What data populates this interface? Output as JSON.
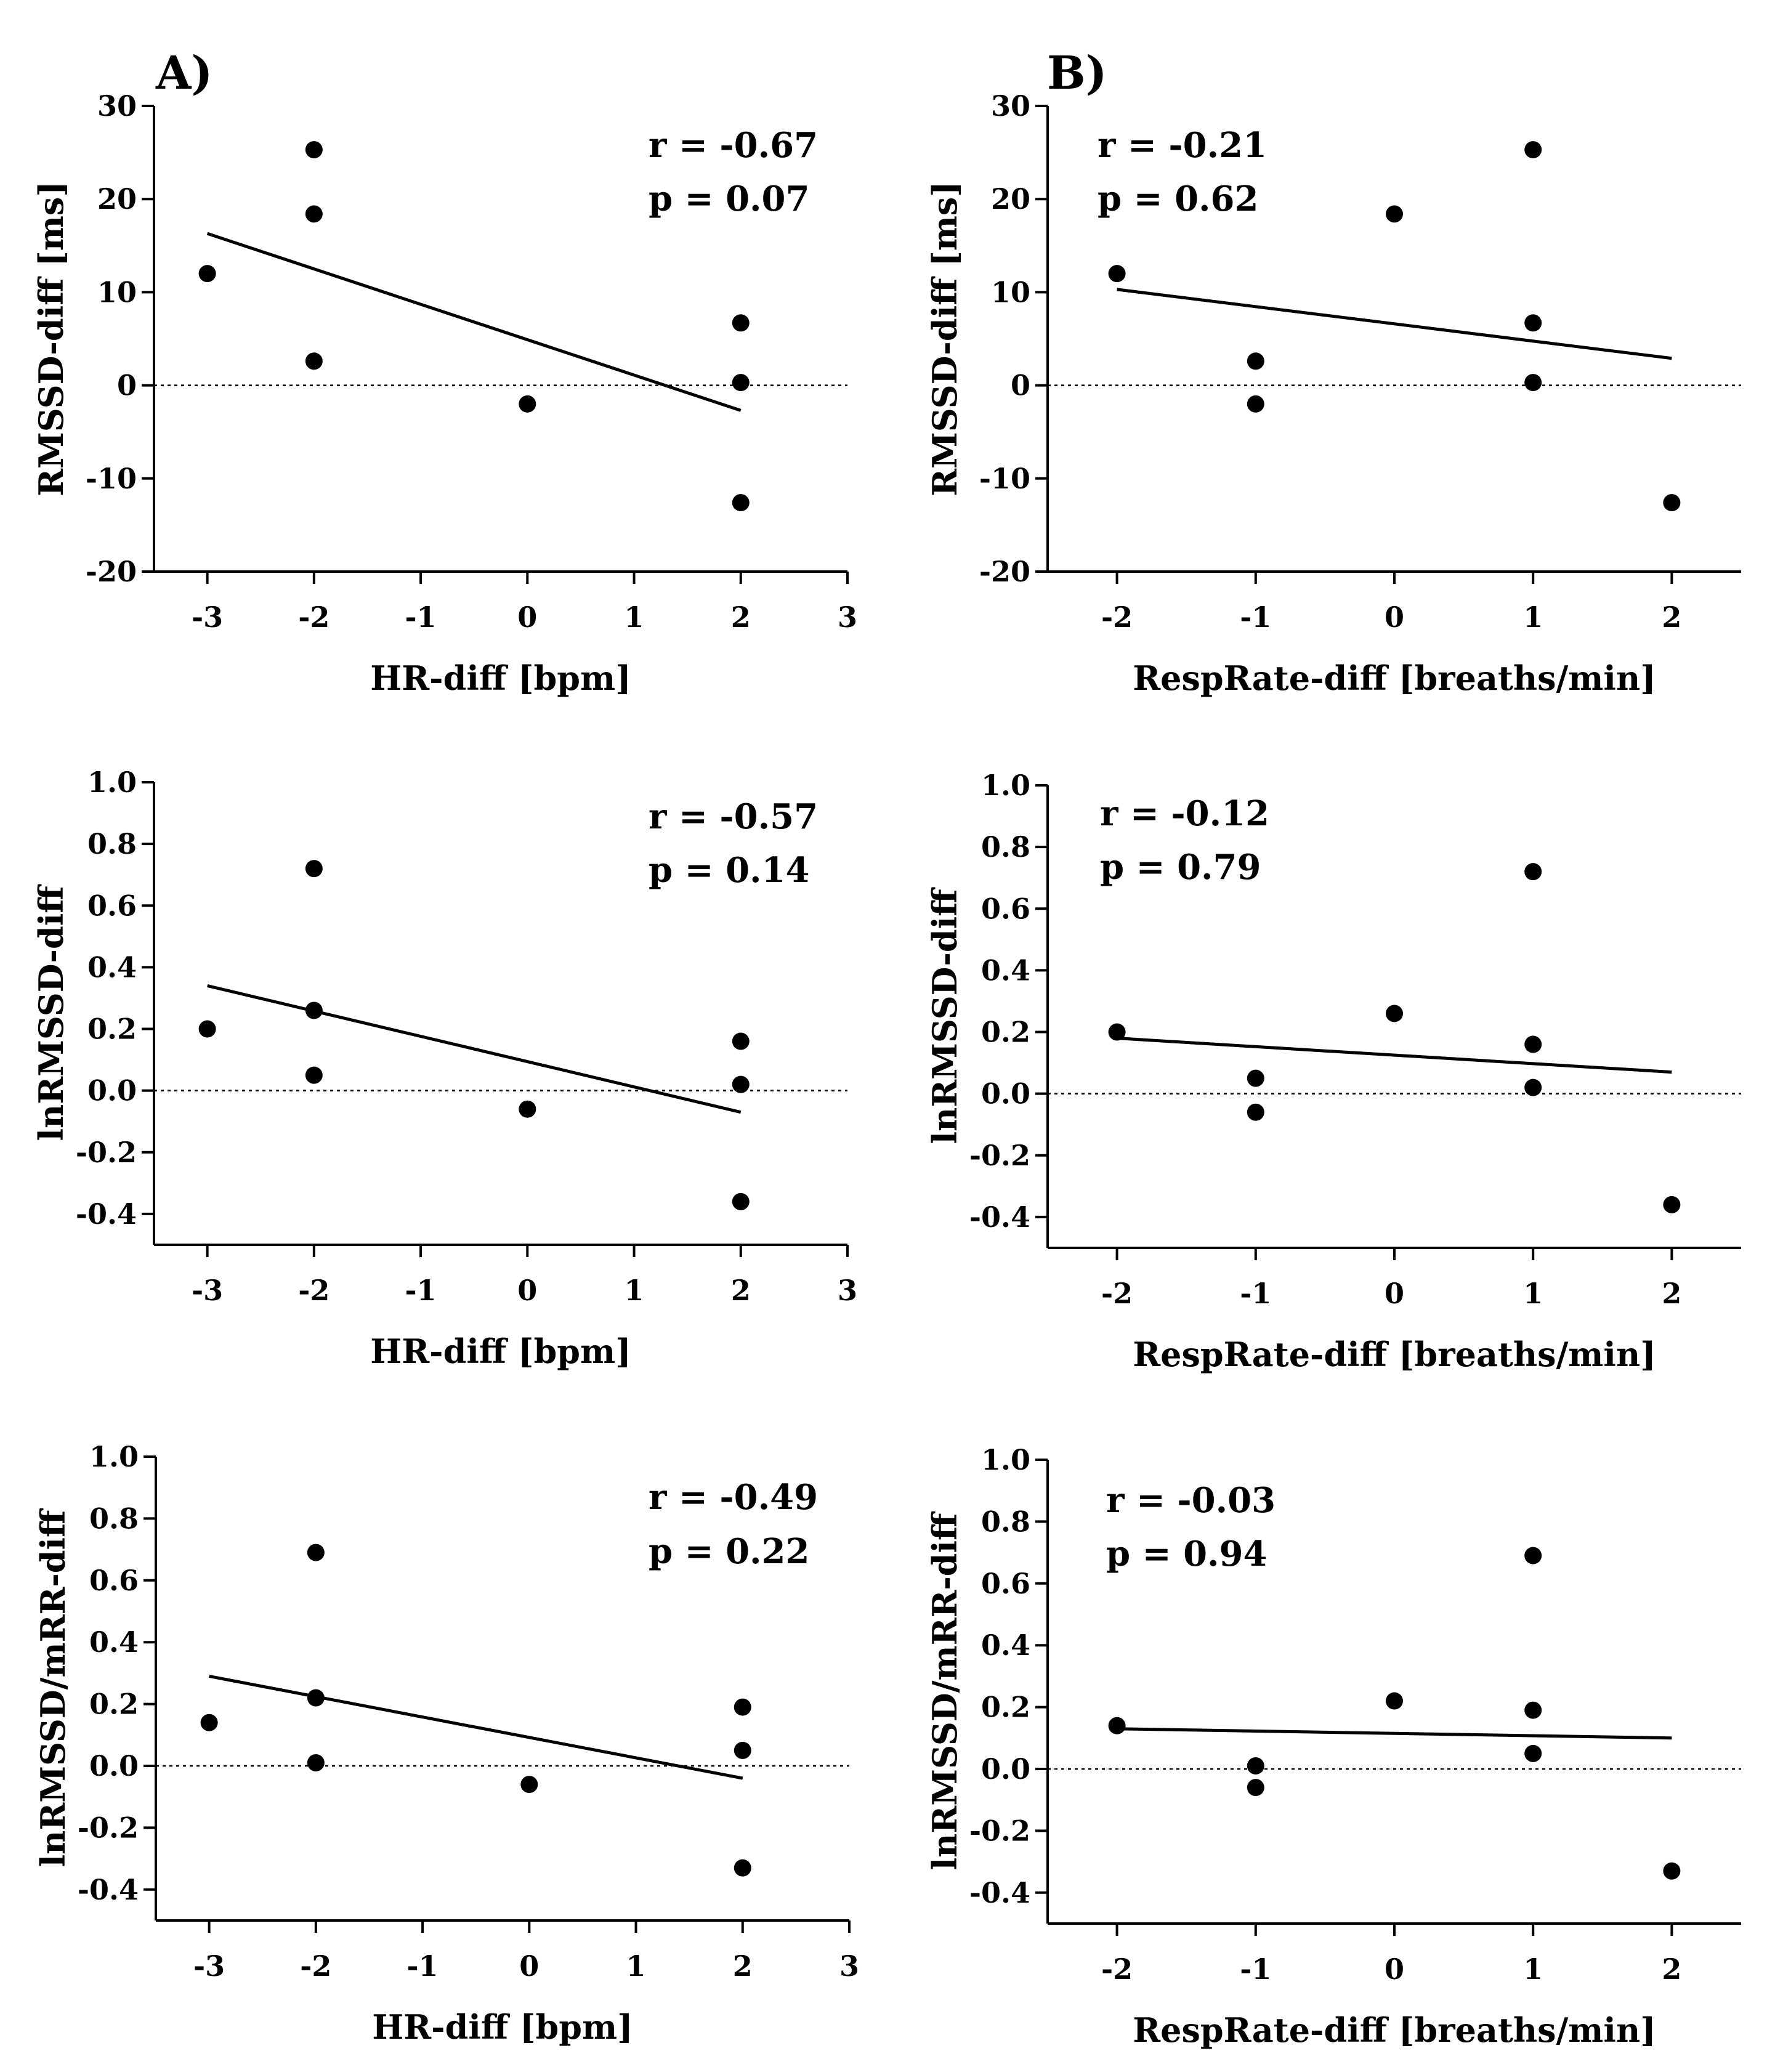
{
  "figure": {
    "panel_letters": [
      "A)",
      "B)"
    ]
  },
  "chart_data": [
    {
      "type": "scatter",
      "panel": "A1",
      "xlabel": "HR-diff [bpm]",
      "ylabel": "RMSSD-diff [ms]",
      "xlim": [
        -3.5,
        3
      ],
      "ylim": [
        -20,
        30
      ],
      "xticks": [
        -3,
        -2,
        -1,
        0,
        1,
        2,
        3
      ],
      "yticks": [
        -20,
        -10,
        0,
        10,
        20,
        30
      ],
      "y_decimals": 0,
      "x": [
        -3,
        -2,
        -2,
        -2,
        0,
        2,
        2,
        2
      ],
      "y": [
        12,
        25.3,
        18.4,
        2.6,
        -2,
        6.7,
        0.3,
        -12.6
      ],
      "fit": {
        "x": [
          -3,
          2
        ],
        "y": [
          16.3,
          -2.7
        ]
      },
      "stats": {
        "r": "r = -0.67",
        "p": "p = 0.07"
      }
    },
    {
      "type": "scatter",
      "panel": "B1",
      "xlabel": "RespRate-diff [breaths/min]",
      "ylabel": "RMSSD-diff [ms]",
      "xlim": [
        -2.5,
        2.5
      ],
      "ylim": [
        -20,
        30
      ],
      "xticks": [
        -2,
        -1,
        0,
        1,
        2
      ],
      "yticks": [
        -20,
        -10,
        0,
        10,
        20,
        30
      ],
      "y_decimals": 0,
      "x": [
        -2,
        -1,
        -1,
        0,
        1,
        1,
        1,
        2
      ],
      "y": [
        12,
        2.6,
        -2,
        18.4,
        25.3,
        6.7,
        0.3,
        -12.6
      ],
      "fit": {
        "x": [
          -2,
          2
        ],
        "y": [
          10.3,
          2.9
        ]
      },
      "stats": {
        "r": "r = -0.21",
        "p": "p = 0.62"
      }
    },
    {
      "type": "scatter",
      "panel": "A2",
      "xlabel": "HR-diff [bpm]",
      "ylabel": "lnRMSSD-diff",
      "xlim": [
        -3.5,
        3
      ],
      "ylim": [
        -0.5,
        1.0
      ],
      "xticks": [
        -3,
        -2,
        -1,
        0,
        1,
        2,
        3
      ],
      "yticks": [
        -0.4,
        -0.2,
        0.0,
        0.2,
        0.4,
        0.6,
        0.8,
        1.0
      ],
      "y_decimals": 1,
      "x": [
        -3,
        -2,
        -2,
        -2,
        0,
        2,
        2,
        2
      ],
      "y": [
        0.2,
        0.72,
        0.26,
        0.05,
        -0.06,
        0.16,
        0.02,
        -0.36
      ],
      "fit": {
        "x": [
          -3,
          2
        ],
        "y": [
          0.34,
          -0.07
        ]
      },
      "stats": {
        "r": "r = -0.57",
        "p": "p = 0.14"
      }
    },
    {
      "type": "scatter",
      "panel": "B2",
      "xlabel": "RespRate-diff [breaths/min]",
      "ylabel": "lnRMSSD-diff",
      "xlim": [
        -2.5,
        2.5
      ],
      "ylim": [
        -0.5,
        1.0
      ],
      "xticks": [
        -2,
        -1,
        0,
        1,
        2
      ],
      "yticks": [
        -0.4,
        -0.2,
        0.0,
        0.2,
        0.4,
        0.6,
        0.8,
        1.0
      ],
      "y_decimals": 1,
      "x": [
        -2,
        -1,
        -1,
        0,
        1,
        1,
        1,
        2
      ],
      "y": [
        0.2,
        0.05,
        -0.06,
        0.26,
        0.72,
        0.16,
        0.02,
        -0.36
      ],
      "fit": {
        "x": [
          -2,
          2
        ],
        "y": [
          0.18,
          0.07
        ]
      },
      "stats": {
        "r": "r = -0.12",
        "p": "p = 0.79"
      }
    },
    {
      "type": "scatter",
      "panel": "A3",
      "xlabel": "HR-diff [bpm]",
      "ylabel": "lnRMSSD/mRR-diff",
      "xlim": [
        -3.5,
        3
      ],
      "ylim": [
        -0.5,
        1.0
      ],
      "xticks": [
        -3,
        -2,
        -1,
        0,
        1,
        2,
        3
      ],
      "yticks": [
        -0.4,
        -0.2,
        0.0,
        0.2,
        0.4,
        0.6,
        0.8,
        1.0
      ],
      "y_decimals": 1,
      "x": [
        -3,
        -2,
        -2,
        -2,
        0,
        2,
        2,
        2
      ],
      "y": [
        0.14,
        0.69,
        0.22,
        0.01,
        -0.06,
        0.19,
        0.05,
        -0.33
      ],
      "fit": {
        "x": [
          -3,
          2
        ],
        "y": [
          0.29,
          -0.04
        ]
      },
      "stats": {
        "r": "r = -0.49",
        "p": "p = 0.22"
      }
    },
    {
      "type": "scatter",
      "panel": "B3",
      "xlabel": "RespRate-diff [breaths/min]",
      "ylabel": "lnRMSSD/mRR-diff",
      "xlim": [
        -2.5,
        2.5
      ],
      "ylim": [
        -0.5,
        1.0
      ],
      "xticks": [
        -2,
        -1,
        0,
        1,
        2
      ],
      "yticks": [
        -0.4,
        -0.2,
        0.0,
        0.2,
        0.4,
        0.6,
        0.8,
        1.0
      ],
      "y_decimals": 1,
      "x": [
        -2,
        -1,
        -1,
        0,
        1,
        1,
        1,
        2
      ],
      "y": [
        0.14,
        0.01,
        -0.06,
        0.22,
        0.69,
        0.19,
        0.05,
        -0.33
      ],
      "fit": {
        "x": [
          -2,
          2
        ],
        "y": [
          0.13,
          0.1
        ]
      },
      "stats": {
        "r": "r = -0.03",
        "p": "p = 0.94"
      }
    }
  ]
}
